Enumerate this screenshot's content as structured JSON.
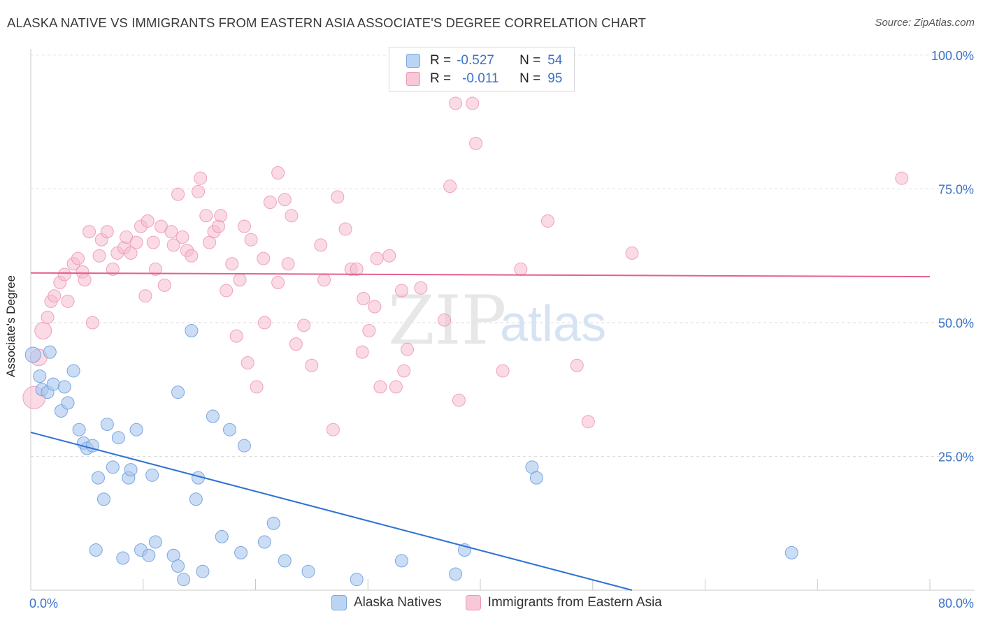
{
  "title": "ALASKA NATIVE VS IMMIGRANTS FROM EASTERN ASIA ASSOCIATE'S DEGREE CORRELATION CHART",
  "source": "Source: ZipAtlas.com",
  "watermark": {
    "zip": "ZIP",
    "atlas": "atlas"
  },
  "legend": {
    "rows": [
      {
        "r_label": "R =",
        "r_value": "-0.527",
        "n_label": "N =",
        "n_value": "54"
      },
      {
        "r_label": "R =",
        "r_value": "-0.011",
        "n_label": "N =",
        "n_value": "95"
      }
    ]
  },
  "colors": {
    "blue_fill": "#a8c6ef",
    "blue_stroke": "#6d9fe0",
    "blue_line": "#2f72d4",
    "pink_fill": "#f6bcd0",
    "pink_stroke": "#ec8fb0",
    "pink_line": "#e4608c",
    "tick_label": "#3a72c8"
  },
  "chart_data": {
    "type": "scatter",
    "title": "ALASKA NATIVE VS IMMIGRANTS FROM EASTERN ASIA ASSOCIATE'S DEGREE CORRELATION CHART",
    "xlabel": "",
    "ylabel": "Associate's Degree",
    "xlim": [
      0,
      80
    ],
    "ylim": [
      0,
      105
    ],
    "x_tick_labels": [
      "0.0%",
      "80.0%"
    ],
    "y_ticks": [
      25,
      50,
      75,
      100
    ],
    "y_tick_labels": [
      "25.0%",
      "50.0%",
      "75.0%",
      "100.0%"
    ],
    "grid": true,
    "legend_position": "top-center",
    "series": [
      {
        "name": "Alaska Natives",
        "color": "#a8c6ef",
        "r": -0.527,
        "n": 54,
        "trend": {
          "x": [
            0,
            53.5
          ],
          "y": [
            29.5,
            0
          ]
        },
        "points": [
          [
            0.2,
            44
          ],
          [
            0.8,
            40
          ],
          [
            1.0,
            37.5
          ],
          [
            1.5,
            37
          ],
          [
            1.7,
            44.5
          ],
          [
            2.0,
            38.5
          ],
          [
            2.7,
            33.5
          ],
          [
            3.0,
            38
          ],
          [
            3.3,
            35
          ],
          [
            3.8,
            41
          ],
          [
            4.3,
            30
          ],
          [
            4.7,
            27.5
          ],
          [
            5.0,
            26.5
          ],
          [
            5.5,
            27
          ],
          [
            5.8,
            7.5
          ],
          [
            6.0,
            21
          ],
          [
            6.5,
            17
          ],
          [
            6.8,
            31
          ],
          [
            7.3,
            23
          ],
          [
            7.8,
            28.5
          ],
          [
            8.2,
            6
          ],
          [
            8.7,
            21
          ],
          [
            8.9,
            22.5
          ],
          [
            9.4,
            30
          ],
          [
            9.8,
            7.5
          ],
          [
            10.5,
            6.5
          ],
          [
            10.8,
            21.5
          ],
          [
            11.1,
            9
          ],
          [
            12.7,
            6.5
          ],
          [
            13.1,
            4.5
          ],
          [
            13.1,
            37
          ],
          [
            13.6,
            2
          ],
          [
            14.3,
            48.5
          ],
          [
            14.7,
            17
          ],
          [
            14.9,
            21
          ],
          [
            15.3,
            3.5
          ],
          [
            16.2,
            32.5
          ],
          [
            17.0,
            10
          ],
          [
            17.7,
            30
          ],
          [
            18.7,
            7
          ],
          [
            19.0,
            27
          ],
          [
            20.8,
            9
          ],
          [
            21.6,
            12.5
          ],
          [
            22.6,
            5.5
          ],
          [
            24.7,
            3.5
          ],
          [
            29.0,
            2
          ],
          [
            33.0,
            5.5
          ],
          [
            37.8,
            3
          ],
          [
            38.6,
            7.5
          ],
          [
            44.6,
            23
          ],
          [
            45.0,
            21
          ],
          [
            67.7,
            7
          ]
        ]
      },
      {
        "name": "Immigrants from Eastern Asia",
        "color": "#f6bcd0",
        "r": -0.011,
        "n": 95,
        "trend": {
          "x": [
            0,
            80
          ],
          "y": [
            59.3,
            58.6
          ]
        },
        "points": [
          [
            0.3,
            36
          ],
          [
            0.7,
            43.5
          ],
          [
            1.1,
            48.5
          ],
          [
            1.5,
            51
          ],
          [
            1.8,
            54
          ],
          [
            2.1,
            55
          ],
          [
            2.6,
            57.5
          ],
          [
            3.0,
            59
          ],
          [
            3.3,
            54
          ],
          [
            3.8,
            61
          ],
          [
            4.2,
            62
          ],
          [
            4.6,
            59.5
          ],
          [
            4.8,
            58
          ],
          [
            5.2,
            67
          ],
          [
            5.5,
            50
          ],
          [
            6.1,
            62.5
          ],
          [
            6.3,
            65.5
          ],
          [
            6.8,
            67
          ],
          [
            7.3,
            60
          ],
          [
            7.7,
            63
          ],
          [
            8.3,
            64
          ],
          [
            8.5,
            66
          ],
          [
            8.9,
            63
          ],
          [
            9.4,
            65
          ],
          [
            9.8,
            68
          ],
          [
            10.2,
            55
          ],
          [
            10.4,
            69
          ],
          [
            10.9,
            65
          ],
          [
            11.1,
            60
          ],
          [
            11.6,
            68
          ],
          [
            11.9,
            57
          ],
          [
            12.5,
            67
          ],
          [
            12.7,
            64.5
          ],
          [
            13.1,
            74
          ],
          [
            13.5,
            66
          ],
          [
            13.9,
            63.5
          ],
          [
            14.3,
            62.5
          ],
          [
            14.9,
            74.5
          ],
          [
            15.1,
            77
          ],
          [
            15.6,
            70
          ],
          [
            15.9,
            65
          ],
          [
            16.3,
            67
          ],
          [
            16.7,
            68
          ],
          [
            16.9,
            70
          ],
          [
            17.4,
            56
          ],
          [
            17.9,
            61
          ],
          [
            18.3,
            47.5
          ],
          [
            18.6,
            58
          ],
          [
            19.0,
            68
          ],
          [
            19.3,
            42.5
          ],
          [
            19.6,
            65.5
          ],
          [
            20.1,
            38
          ],
          [
            20.7,
            62
          ],
          [
            20.8,
            50
          ],
          [
            21.3,
            72.5
          ],
          [
            22.0,
            57.5
          ],
          [
            22.0,
            78
          ],
          [
            22.6,
            73
          ],
          [
            22.9,
            61
          ],
          [
            23.2,
            70
          ],
          [
            23.6,
            46
          ],
          [
            24.3,
            49.5
          ],
          [
            25.0,
            42
          ],
          [
            25.8,
            64.5
          ],
          [
            26.1,
            58
          ],
          [
            26.9,
            30
          ],
          [
            27.3,
            73.5
          ],
          [
            28.0,
            67.5
          ],
          [
            28.5,
            60
          ],
          [
            29.0,
            60
          ],
          [
            29.5,
            44.5
          ],
          [
            29.6,
            54.5
          ],
          [
            30.1,
            48.5
          ],
          [
            30.6,
            53
          ],
          [
            30.8,
            62
          ],
          [
            31.1,
            38
          ],
          [
            31.9,
            62.5
          ],
          [
            32.5,
            38
          ],
          [
            33.0,
            56
          ],
          [
            33.2,
            41
          ],
          [
            33.5,
            45
          ],
          [
            34.7,
            56.5
          ],
          [
            36.8,
            50.5
          ],
          [
            37.3,
            75.5
          ],
          [
            37.8,
            91
          ],
          [
            38.1,
            35.5
          ],
          [
            39.3,
            91
          ],
          [
            39.6,
            83.5
          ],
          [
            42.0,
            41
          ],
          [
            43.6,
            60
          ],
          [
            46.0,
            69
          ],
          [
            48.6,
            42
          ],
          [
            49.6,
            31.5
          ],
          [
            53.5,
            63
          ],
          [
            77.5,
            77
          ]
        ]
      }
    ]
  },
  "axis": {
    "y_label": "Associate's Degree",
    "x_min_label": "0.0%",
    "x_max_label": "80.0%"
  },
  "bottom_legend": {
    "items": [
      {
        "label": "Alaska Natives"
      },
      {
        "label": "Immigrants from Eastern Asia"
      }
    ]
  }
}
